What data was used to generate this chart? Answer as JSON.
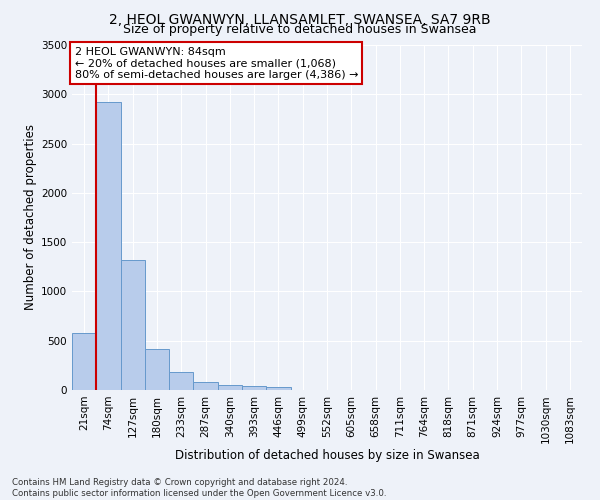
{
  "title": "2, HEOL GWANWYN, LLANSAMLET, SWANSEA, SA7 9RB",
  "subtitle": "Size of property relative to detached houses in Swansea",
  "xlabel": "Distribution of detached houses by size in Swansea",
  "ylabel": "Number of detached properties",
  "footnote1": "Contains HM Land Registry data © Crown copyright and database right 2024.",
  "footnote2": "Contains public sector information licensed under the Open Government Licence v3.0.",
  "bar_labels": [
    "21sqm",
    "74sqm",
    "127sqm",
    "180sqm",
    "233sqm",
    "287sqm",
    "340sqm",
    "393sqm",
    "446sqm",
    "499sqm",
    "552sqm",
    "605sqm",
    "658sqm",
    "711sqm",
    "764sqm",
    "818sqm",
    "871sqm",
    "924sqm",
    "977sqm",
    "1030sqm",
    "1083sqm"
  ],
  "bar_values": [
    580,
    2920,
    1320,
    415,
    185,
    80,
    48,
    42,
    35,
    0,
    0,
    0,
    0,
    0,
    0,
    0,
    0,
    0,
    0,
    0,
    0
  ],
  "bar_color": "#b8cceb",
  "bar_edgecolor": "#6699cc",
  "ylim": [
    0,
    3500
  ],
  "yticks": [
    0,
    500,
    1000,
    1500,
    2000,
    2500,
    3000,
    3500
  ],
  "red_line_x": 0.5,
  "annotation_line1": "2 HEOL GWANWYN: 84sqm",
  "annotation_line2": "← 20% of detached houses are smaller (1,068)",
  "annotation_line3": "80% of semi-detached houses are larger (4,386) →",
  "annotation_box_color": "#ffffff",
  "annotation_box_edgecolor": "#cc0000",
  "red_line_color": "#cc0000",
  "background_color": "#eef2f9",
  "grid_color": "#ffffff",
  "title_fontsize": 10,
  "subtitle_fontsize": 9,
  "axis_fontsize": 8.5,
  "tick_fontsize": 7.5,
  "annotation_fontsize": 8
}
